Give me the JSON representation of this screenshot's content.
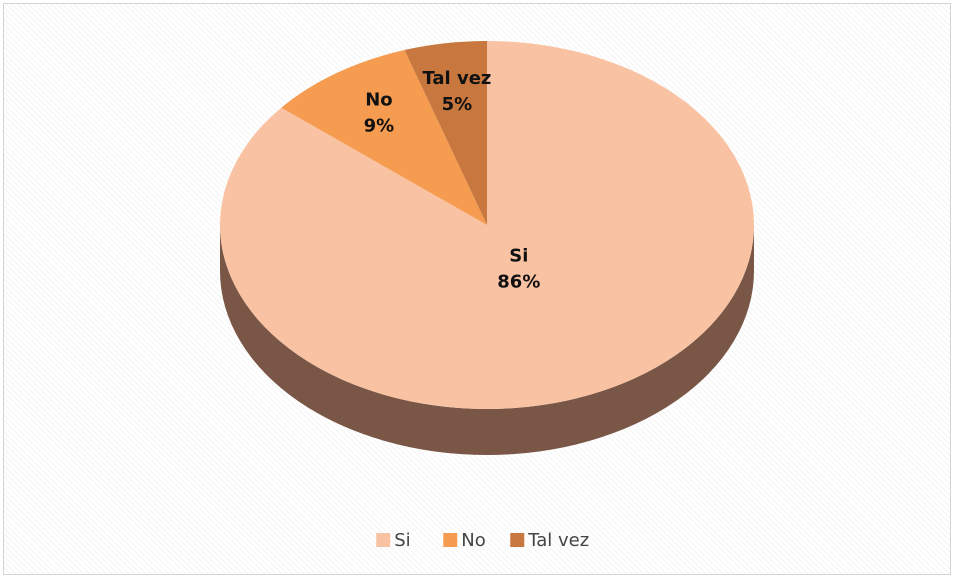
{
  "chart_data": {
    "type": "pie",
    "title": "",
    "categories": [
      "Si",
      "No",
      "Tal vez"
    ],
    "values": [
      86,
      9,
      5
    ],
    "value_labels": [
      "86%",
      "9%",
      "5%"
    ],
    "colors": [
      "#f9c3a3",
      "#f59c50",
      "#c8783e"
    ],
    "side_colors": [
      "#7a5647",
      "#8a5a38",
      "#6e4a33"
    ],
    "three_d": true,
    "legend": {
      "position": "bottom",
      "entries": [
        "Si",
        "No",
        "Tal vez"
      ]
    }
  }
}
